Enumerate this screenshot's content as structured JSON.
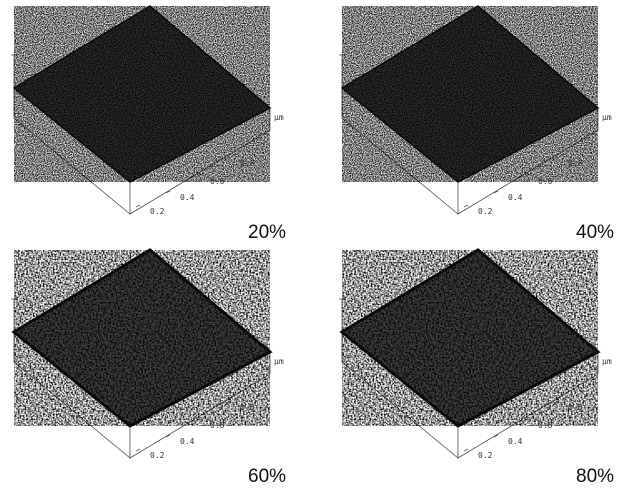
{
  "panels": [
    {
      "label": "20%",
      "ticks": [
        "0.2",
        "0.4",
        "0.6",
        "0.8"
      ],
      "unit": "µm"
    },
    {
      "label": "40%",
      "ticks": [
        "0.2",
        "0.4",
        "0.6",
        "0.8"
      ],
      "unit": "µm"
    },
    {
      "label": "60%",
      "ticks": [
        "0.2",
        "0.4",
        "0.6",
        "0.8"
      ],
      "unit": "µm"
    },
    {
      "label": "80%",
      "ticks": [
        "0.2",
        "0.4",
        "0.6",
        "0.8"
      ],
      "unit": "µm"
    }
  ]
}
